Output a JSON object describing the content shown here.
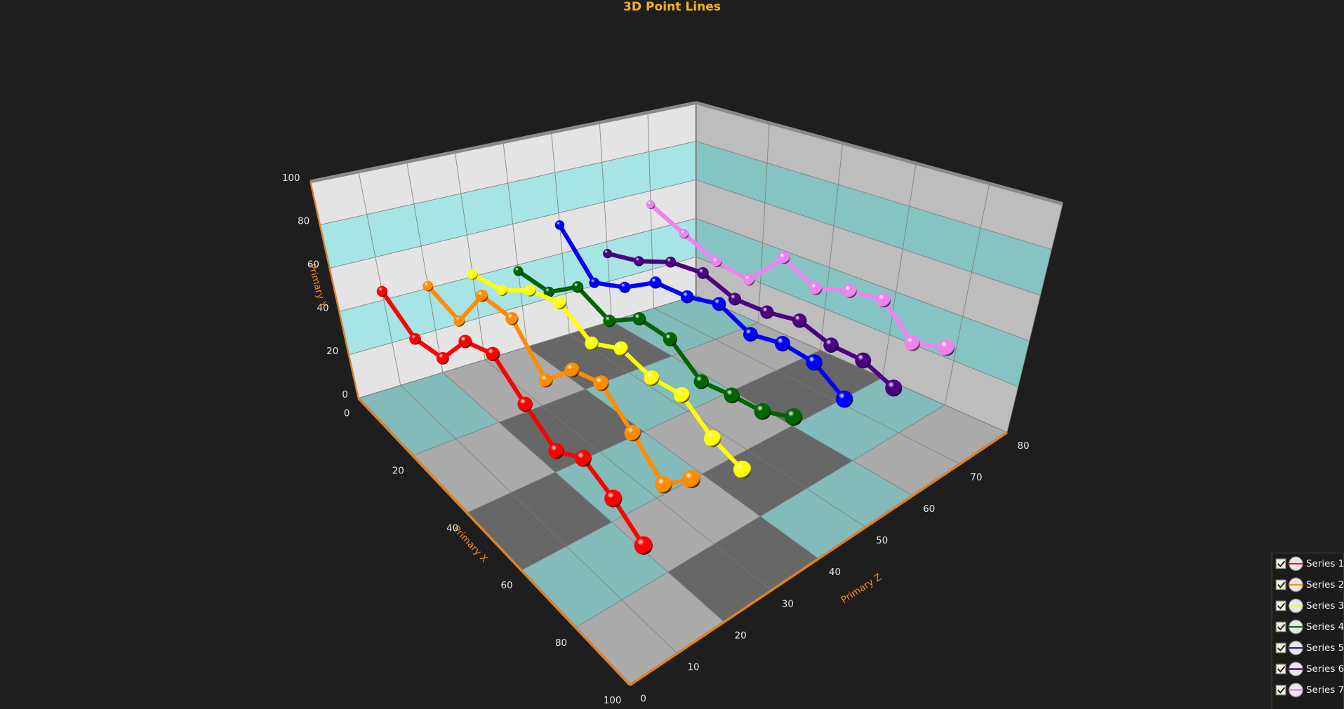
{
  "chart_data": {
    "type": "line3d",
    "title": "3D Point Lines",
    "x_label": "Primary X",
    "y_label": "Primary Y",
    "z_label": "Primary Z",
    "x": [
      0,
      10,
      20,
      30,
      40,
      50,
      60,
      70,
      80,
      90
    ],
    "xlim": [
      0,
      100
    ],
    "xticks": [
      0,
      20,
      40,
      60,
      80,
      100
    ],
    "ylim": [
      0,
      100
    ],
    "yticks": [
      0,
      20,
      40,
      60,
      80,
      100
    ],
    "zlim": [
      0,
      80
    ],
    "zticks": [
      0,
      10,
      20,
      30,
      40,
      50,
      60,
      70,
      80
    ],
    "legend": "bottom-right",
    "series": [
      {
        "name": "Series 1",
        "color": "#ff0000",
        "z": 10,
        "values": [
          44,
          33,
          35,
          52,
          56,
          45,
          36,
          42,
          36,
          28
        ]
      },
      {
        "name": "Series 2",
        "color": "#ff8c00",
        "z": 20,
        "values": [
          41,
          35,
          56,
          55,
          38,
          51,
          54,
          43,
          32,
          42
        ]
      },
      {
        "name": "Series 3",
        "color": "#ffff00",
        "z": 30,
        "values": [
          41,
          43,
          52,
          55,
          46,
          52,
          48,
          49,
          40,
          36
        ]
      },
      {
        "name": "Series 4",
        "color": "#006400",
        "z": 40,
        "values": [
          37,
          36,
          47,
          40,
          49,
          48,
          38,
          40,
          41,
          46
        ]
      },
      {
        "name": "Series 5",
        "color": "#0000ff",
        "z": 50,
        "values": [
          54,
          34,
          40,
          50,
          51,
          55,
          49,
          52,
          51,
          43
        ]
      },
      {
        "name": "Series 6",
        "color": "#4b0082",
        "z": 60,
        "values": [
          34,
          38,
          45,
          47,
          42,
          43,
          46,
          42,
          42,
          37
        ]
      },
      {
        "name": "Series 7",
        "color": "#ee82ee",
        "z": 70,
        "values": [
          53,
          45,
          38,
          36,
          53,
          45,
          50,
          52,
          39,
          43
        ]
      }
    ]
  }
}
